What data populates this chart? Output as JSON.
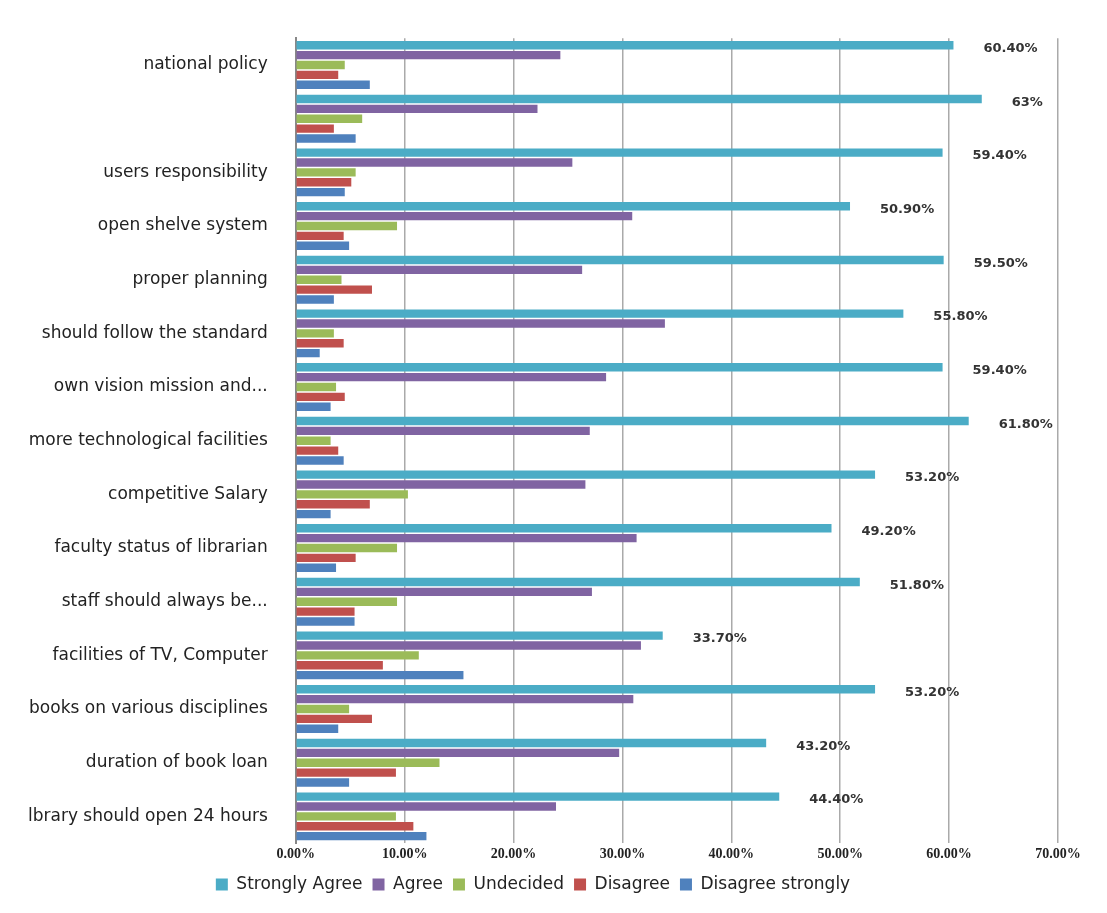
{
  "chart_data": {
    "type": "bar",
    "orientation": "horizontal",
    "categories": [
      "national policy",
      null,
      "users responsibility",
      "open shelve system",
      "proper planning",
      "should follow the standard",
      "own vision mission and...",
      "more technological facilities",
      "competitive Salary",
      "faculty status of librarian",
      "staff should always be...",
      "facilities of TV, Computer",
      "books on various disciplines",
      "duration of book loan",
      "lbrary should open 24 hours"
    ],
    "series": [
      {
        "name": "Strongly Agree",
        "color": "#4bacc6",
        "values": [
          60.4,
          63,
          59.4,
          50.9,
          59.5,
          55.8,
          59.4,
          61.8,
          53.2,
          49.2,
          51.8,
          33.7,
          53.2,
          43.2,
          44.4
        ],
        "value_labels": [
          "60.40%",
          "63%",
          "59.40%",
          "50.90%",
          "59.50%",
          "55.80%",
          "59.40%",
          "61.80%",
          "53.20%",
          "49.20%",
          "51.80%",
          "33.70%",
          "53.20%",
          "43.20%",
          "44.40%"
        ]
      },
      {
        "name": "Agree",
        "color": "#8064a2",
        "values": [
          24.3,
          22.2,
          25.4,
          30.9,
          26.3,
          33.9,
          28.5,
          27.0,
          26.6,
          31.3,
          27.2,
          31.7,
          31.0,
          29.7,
          23.9
        ]
      },
      {
        "name": "Undecided",
        "color": "#9bbb59",
        "values": [
          4.5,
          6.1,
          5.5,
          9.3,
          4.2,
          3.5,
          3.7,
          3.2,
          10.3,
          9.3,
          9.3,
          11.3,
          4.9,
          13.2,
          9.2
        ]
      },
      {
        "name": "Disagree",
        "color": "#c0504d",
        "values": [
          3.9,
          3.5,
          5.1,
          4.4,
          7.0,
          4.4,
          4.5,
          3.9,
          6.8,
          5.5,
          5.4,
          8.0,
          7.0,
          9.2,
          10.8
        ]
      },
      {
        "name": "Disagree strongly",
        "color": "#4f81bd",
        "values": [
          6.8,
          5.5,
          4.5,
          4.9,
          3.5,
          2.2,
          3.2,
          4.4,
          3.2,
          3.7,
          5.4,
          15.4,
          3.9,
          4.9,
          12.0
        ]
      }
    ],
    "xlim": [
      0,
      70
    ],
    "xticks": [
      {
        "value": 0,
        "label": "0.00%"
      },
      {
        "value": 10,
        "label": "10.00%"
      },
      {
        "value": 20,
        "label": "20.00%"
      },
      {
        "value": 30,
        "label": "30.00%"
      },
      {
        "value": 40,
        "label": "40.00%"
      },
      {
        "value": 50,
        "label": "50.00%"
      },
      {
        "value": 60,
        "label": "60.00%"
      },
      {
        "value": 70,
        "label": "70.00%"
      }
    ],
    "grid": "x",
    "legend": "bottom"
  }
}
